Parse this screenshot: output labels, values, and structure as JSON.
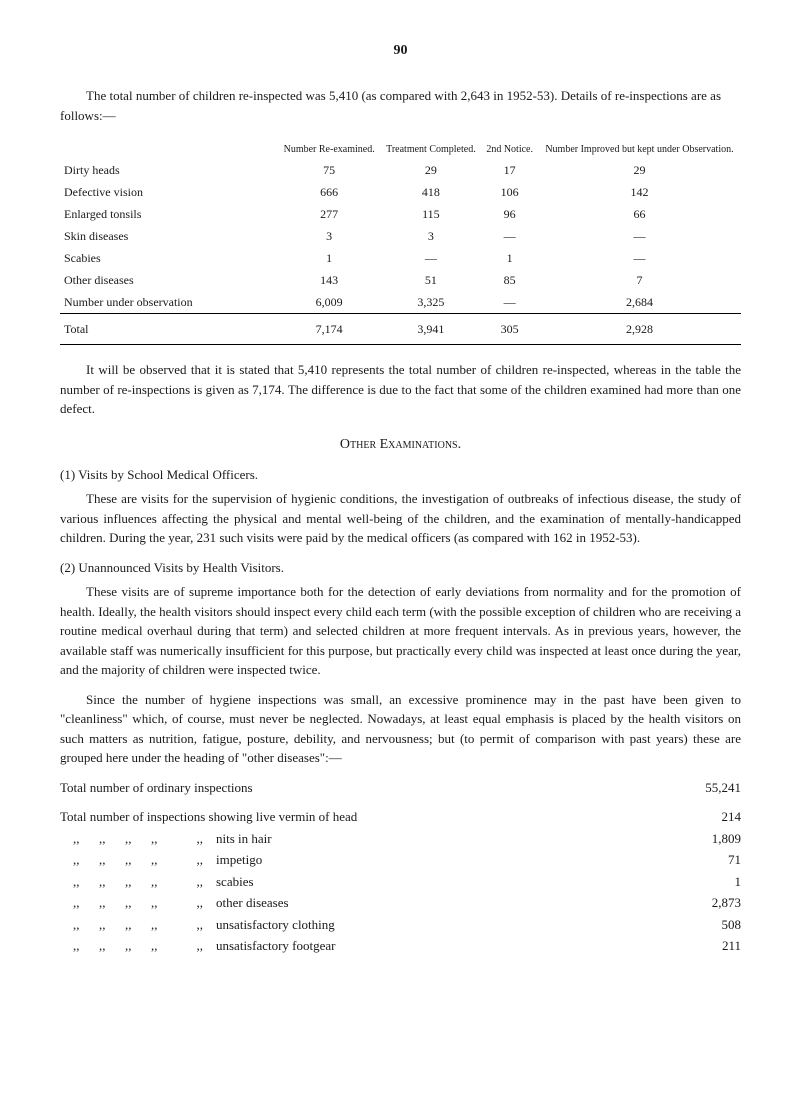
{
  "page_number": "90",
  "intro_text": "The total number of children re-inspected was 5,410 (as compared with 2,643 in 1952-53). Details of re-inspections are as follows:—",
  "table": {
    "columns": [
      "",
      "Number Re-examined.",
      "Treatment Completed.",
      "2nd Notice.",
      "Number Improved but kept under Observation."
    ],
    "rows": [
      [
        "Dirty heads",
        "75",
        "29",
        "17",
        "29"
      ],
      [
        "Defective vision",
        "666",
        "418",
        "106",
        "142"
      ],
      [
        "Enlarged tonsils",
        "277",
        "115",
        "96",
        "66"
      ],
      [
        "Skin diseases",
        "3",
        "3",
        "—",
        "—"
      ],
      [
        "Scabies",
        "1",
        "—",
        "1",
        "—"
      ],
      [
        "Other diseases",
        "143",
        "51",
        "85",
        "7"
      ],
      [
        "Number under observation",
        "6,009",
        "3,325",
        "—",
        "2,684"
      ]
    ],
    "total": [
      "Total",
      "7,174",
      "3,941",
      "305",
      "2,928"
    ]
  },
  "para1": "It will be observed that it is stated that 5,410 represents the total number of children re-inspected, whereas in the table the number of re-inspections is given as 7,174. The difference is due to the fact that some of the children examined had more than one defect.",
  "section_heading": "Other Examinations.",
  "sub1_label": "(1) Visits by School Medical Officers.",
  "sub1_para": "These are visits for the supervision of hygienic conditions, the investigation of outbreaks of infectious disease, the study of various influences affecting the physical and mental well-being of the children, and the examination of mentally-handicapped children. During the year, 231 such visits were paid by the medical officers (as compared with 162 in 1952-53).",
  "sub2_label": "(2) Unannounced Visits by Health Visitors.",
  "sub2_para1": "These visits are of supreme importance both for the detection of early deviations from normality and for the promotion of health. Ideally, the health visitors should inspect every child each term (with the possible exception of children who are receiving a routine medical overhaul during that term) and selected children at more frequent intervals. As in previous years, however, the available staff was numerically insufficient for this purpose, but practically every child was inspected at least once during the year, and the majority of children were inspected twice.",
  "sub2_para2": "Since the number of hygiene inspections was small, an excessive prominence may in the past have been given to \"cleanliness\" which, of course, must never be neglected. Nowadays, at least equal emphasis is placed by the health visitors on such matters as nutrition, fatigue, posture, debility, and nervousness; but (to permit of comparison with past years) these are grouped here under the heading of \"other diseases\":—",
  "stats": [
    {
      "label": "Total number of ordinary inspections",
      "value": "55,241"
    },
    {
      "label": "Total number of inspections showing live vermin of head",
      "value": "214"
    },
    {
      "label": "    ,,      ,,      ,,      ,,            ,,    nits in hair",
      "value": "1,809"
    },
    {
      "label": "    ,,      ,,      ,,      ,,            ,,    impetigo",
      "value": "71"
    },
    {
      "label": "    ,,      ,,      ,,      ,,            ,,    scabies",
      "value": "1"
    },
    {
      "label": "    ,,      ,,      ,,      ,,            ,,    other diseases",
      "value": "2,873"
    },
    {
      "label": "    ,,      ,,      ,,      ,,            ,,    unsatisfactory clothing",
      "value": "508"
    },
    {
      "label": "    ,,      ,,      ,,      ,,            ,,    unsatisfactory footgear",
      "value": "211"
    }
  ]
}
